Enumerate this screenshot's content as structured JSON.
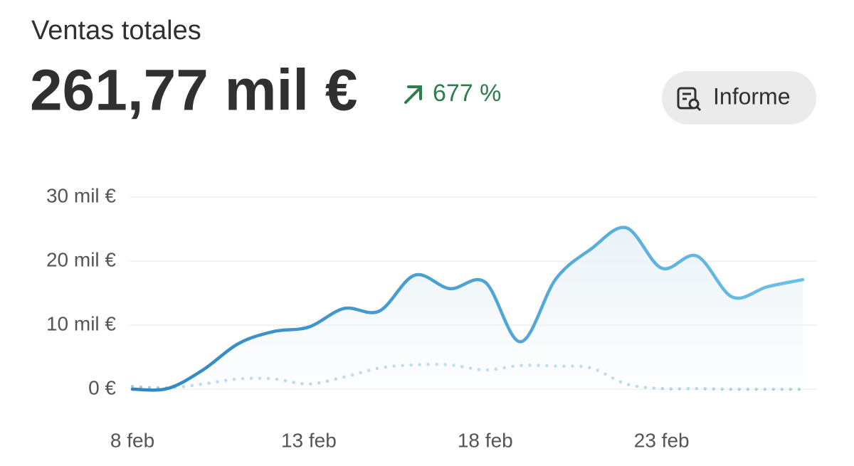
{
  "header": {
    "title": "Ventas totales",
    "value": "261,77 mil €",
    "change": "677 %"
  },
  "button": {
    "label": "Informe"
  },
  "chart_data": {
    "type": "line",
    "categories": [
      "8 feb",
      null,
      null,
      null,
      null,
      "13 feb",
      null,
      null,
      null,
      null,
      "18 feb",
      null,
      null,
      null,
      null,
      "23 feb",
      null,
      null,
      null,
      null
    ],
    "series": [
      {
        "color": "#4a9fd4",
        "style": "solid",
        "values": [
          0,
          100,
          3000,
          7100,
          9000,
          9700,
          12600,
          12200,
          17800,
          15700,
          16700,
          7400,
          17200,
          21900,
          25200,
          18900,
          20800,
          14400,
          16000,
          17100
        ]
      },
      {
        "color": "#9fcbe3",
        "style": "dotted",
        "values": [
          400,
          200,
          800,
          1600,
          1600,
          800,
          1900,
          3300,
          3800,
          3800,
          3000,
          3700,
          3600,
          3300,
          800,
          100,
          100,
          0,
          0,
          0
        ]
      }
    ],
    "ylim": [
      0,
      30000
    ],
    "yticks": [
      {
        "value": 0,
        "label": "0 €"
      },
      {
        "value": 10000,
        "label": "10 mil €"
      },
      {
        "value": 20000,
        "label": "20 mil €"
      },
      {
        "value": 30000,
        "label": "30 mil €"
      }
    ],
    "grid": true
  }
}
